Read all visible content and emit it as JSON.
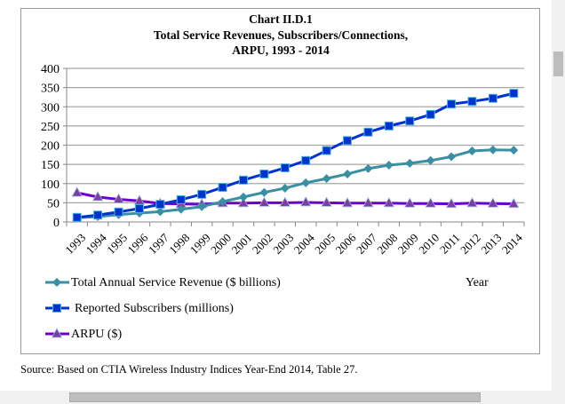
{
  "chart_data": {
    "type": "line",
    "title": [
      "Chart II.D.1",
      "Total Service Revenues, Subscribers/Connections,",
      "ARPU, 1993 - 2014"
    ],
    "xlabel": "Year",
    "ylabel": "",
    "ylim": [
      0,
      400
    ],
    "yticks": [
      0,
      50,
      100,
      150,
      200,
      250,
      300,
      350,
      400
    ],
    "grid": true,
    "legend_placement": "bottom-left",
    "categories": [
      "1993",
      "1994",
      "1995",
      "1996",
      "1997",
      "1998",
      "1999",
      "2000",
      "2001",
      "2002",
      "2003",
      "2004",
      "2005",
      "2006",
      "2007",
      "2008",
      "2009",
      "2010",
      "2011",
      "2012",
      "2013",
      "2014"
    ],
    "series": [
      {
        "name": "Total Annual Service Revenue ($ billions)",
        "color": "#3a8fa3",
        "marker": "diamond",
        "values": [
          11,
          14,
          19,
          23,
          27,
          33,
          40,
          53,
          65,
          77,
          88,
          102,
          113,
          125,
          139,
          148,
          153,
          160,
          170,
          185,
          188,
          187
        ]
      },
      {
        "name": "Reported Subscribers (millions)",
        "color": "#0033cc",
        "marker": "square",
        "values": [
          12,
          18,
          26,
          35,
          46,
          58,
          72,
          90,
          109,
          125,
          141,
          160,
          186,
          212,
          234,
          250,
          263,
          280,
          307,
          314,
          322,
          335
        ]
      },
      {
        "name": "ARPU ($)",
        "color": "#6a00cc",
        "marker": "triangle",
        "values": [
          76,
          65,
          59,
          55,
          48,
          47,
          46,
          49,
          49,
          50,
          50,
          51,
          50,
          49,
          49,
          49,
          48,
          48,
          47,
          49,
          48,
          47
        ]
      }
    ]
  },
  "source": "Source:  Based on CTIA Wireless Industry Indices Year-End 2014, Table 27."
}
